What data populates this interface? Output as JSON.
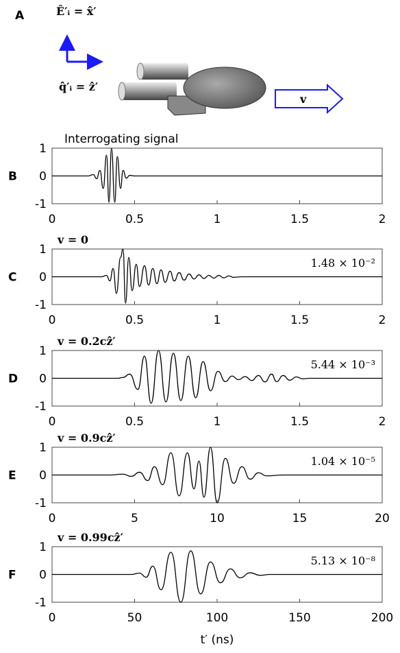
{
  "diagram": {
    "label": "A",
    "e_field": "Ê′ᵢ = x̂′",
    "q_vector": "q̂′ᵢ = ẑ′",
    "velocity": "v"
  },
  "chart_data": [
    {
      "type": "line",
      "panel": "B",
      "title": "Interrogating signal",
      "xlim": [
        0,
        2
      ],
      "xticks": [
        0,
        0.5,
        1,
        1.5,
        2
      ],
      "ylim": [
        -1,
        1
      ],
      "yticks": [
        -1,
        0,
        1
      ],
      "color": "#000000",
      "x": [
        0,
        0.22,
        0.25,
        0.27,
        0.29,
        0.31,
        0.33,
        0.345,
        0.36,
        0.38,
        0.395,
        0.415,
        0.43,
        0.45,
        0.47,
        0.5,
        2
      ],
      "values": [
        0,
        0,
        0.05,
        -0.1,
        0.2,
        -0.45,
        0.75,
        -0.95,
        1,
        -0.95,
        0.7,
        -0.45,
        0.2,
        -0.08,
        0.02,
        0,
        0
      ]
    },
    {
      "type": "line",
      "panel": "C",
      "title": "v = 0",
      "annotation": "1.48 × 10⁻²",
      "xlim": [
        0,
        2
      ],
      "xticks": [
        0,
        0.5,
        1,
        1.5,
        2
      ],
      "ylim": [
        -1,
        1
      ],
      "yticks": [
        -1,
        0,
        1
      ],
      "color": "#000000",
      "x": [
        0,
        0.3,
        0.33,
        0.35,
        0.37,
        0.39,
        0.415,
        0.43,
        0.445,
        0.465,
        0.485,
        0.51,
        0.53,
        0.56,
        0.585,
        0.61,
        0.635,
        0.66,
        0.685,
        0.715,
        0.74,
        0.77,
        0.8,
        0.83,
        0.86,
        0.89,
        0.92,
        0.95,
        0.98,
        1.01,
        1.04,
        1.07,
        1.1,
        1.15,
        2
      ],
      "values": [
        0,
        0,
        0.05,
        -0.15,
        0.3,
        -0.6,
        0.7,
        1,
        -0.95,
        0.7,
        -0.5,
        0.45,
        -0.35,
        0.4,
        -0.3,
        0.3,
        -0.25,
        0.25,
        -0.2,
        0.2,
        -0.15,
        0.15,
        -0.12,
        0.1,
        -0.08,
        0.07,
        -0.06,
        0.05,
        -0.05,
        0.05,
        -0.04,
        0.03,
        -0.02,
        0,
        0
      ]
    },
    {
      "type": "line",
      "panel": "D",
      "title": "v = 0.2cẑ′",
      "annotation": "5.44 × 10⁻³",
      "xlim": [
        0,
        2
      ],
      "xticks": [
        0,
        0.5,
        1,
        1.5,
        2
      ],
      "ylim": [
        -1,
        1
      ],
      "yticks": [
        -1,
        0,
        1
      ],
      "color": "#000000",
      "x": [
        0,
        0.4,
        0.43,
        0.47,
        0.52,
        0.56,
        0.6,
        0.645,
        0.69,
        0.735,
        0.78,
        0.825,
        0.87,
        0.915,
        0.96,
        1.005,
        1.05,
        1.09,
        1.13,
        1.17,
        1.21,
        1.25,
        1.29,
        1.33,
        1.36,
        1.4,
        1.44,
        1.48,
        1.52,
        1.56,
        2
      ],
      "values": [
        0,
        0,
        0.03,
        0.15,
        -0.4,
        0.8,
        -0.9,
        1,
        -0.85,
        0.9,
        -0.8,
        0.8,
        -0.7,
        0.6,
        -0.45,
        0.25,
        -0.12,
        0.08,
        -0.05,
        0.06,
        -0.08,
        0.1,
        -0.13,
        0.15,
        -0.12,
        0.1,
        -0.07,
        0.05,
        -0.02,
        0,
        0
      ]
    },
    {
      "type": "line",
      "panel": "E",
      "title": "v = 0.9cẑ′",
      "annotation": "1.04 × 10⁻⁵",
      "xlim": [
        0,
        20
      ],
      "xticks": [
        0,
        5,
        10,
        15,
        20
      ],
      "ylim": [
        -1,
        1
      ],
      "yticks": [
        -1,
        0,
        1
      ],
      "color": "#000000",
      "x": [
        0,
        3.5,
        4.3,
        4.8,
        5.3,
        5.8,
        6.2,
        6.7,
        7.2,
        7.7,
        8.2,
        8.6,
        8.9,
        9.2,
        9.6,
        10,
        10.5,
        11,
        11.5,
        12,
        12.5,
        13,
        14,
        20
      ],
      "values": [
        0,
        0,
        0.03,
        -0.05,
        0.1,
        -0.2,
        0.3,
        -0.35,
        0.8,
        -0.75,
        0.8,
        -0.5,
        0.5,
        -0.8,
        1,
        -1,
        0.6,
        -0.3,
        0.3,
        -0.15,
        0.08,
        -0.03,
        0,
        0
      ]
    },
    {
      "type": "line",
      "panel": "F",
      "title": "v = 0.99cẑ′",
      "annotation": "5.13 × 10⁻⁸",
      "xlabel": "t′ (ns)",
      "xlim": [
        0,
        200
      ],
      "xticks": [
        0,
        50,
        100,
        150,
        200
      ],
      "ylim": [
        -1,
        1
      ],
      "yticks": [
        -1,
        0,
        1
      ],
      "color": "#000000",
      "x": [
        0,
        48,
        53,
        57,
        61,
        66,
        72,
        78,
        84,
        90,
        96,
        102,
        108,
        114,
        120,
        126,
        132,
        200
      ],
      "values": [
        0,
        0,
        0.05,
        -0.1,
        0.3,
        -0.55,
        0.8,
        -1,
        0.85,
        -0.7,
        0.45,
        -0.3,
        0.2,
        -0.12,
        0.06,
        -0.03,
        0,
        0
      ]
    }
  ]
}
